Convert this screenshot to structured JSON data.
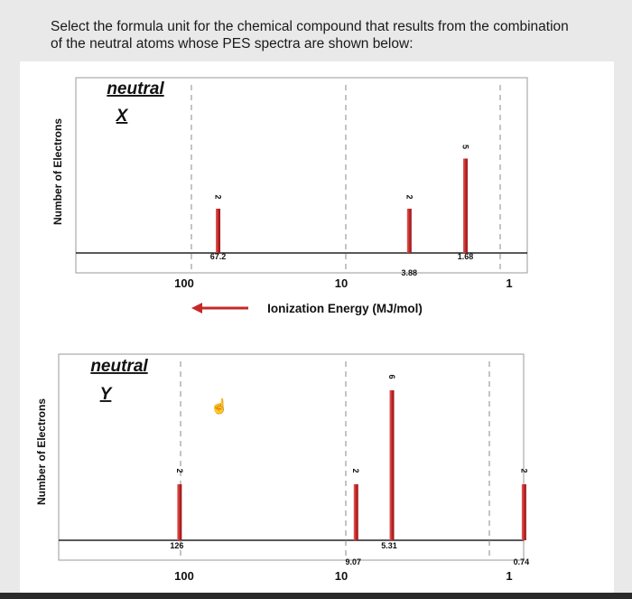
{
  "question": {
    "line1": "Select the formula unit for the chemical compound that results from the combination",
    "line2": "of the neutral atoms whose PES spectra are shown below:"
  },
  "chart_data": [
    {
      "type": "bar",
      "title": "neutral X",
      "title_word": "neutral",
      "title_symbol": "X",
      "ylabel": "Number of Electrons",
      "xlabel": "Ionization Energy (MJ/mol)",
      "x_scale": "log",
      "x_direction": "decreasing to the right",
      "x_ticks": [
        "100",
        "10",
        "1"
      ],
      "points": [
        {
          "x": 67.2,
          "x_label": "67.2",
          "y": 2,
          "y_label": "2"
        },
        {
          "x": 3.88,
          "x_label": "3.88",
          "y": 2,
          "y_label": "2"
        },
        {
          "x": 1.68,
          "x_label": "1.68",
          "y": 5,
          "y_label": "5"
        }
      ],
      "bar_color": "#c62828"
    },
    {
      "type": "bar",
      "title": "neutral Y",
      "title_word": "neutral",
      "title_symbol": "Y",
      "ylabel": "Number of Electrons",
      "x_scale": "log",
      "x_ticks": [
        "100",
        "10",
        "1"
      ],
      "points": [
        {
          "x": 126,
          "x_label": "126",
          "y": 2,
          "y_label": "2"
        },
        {
          "x": 9.07,
          "x_label": "9.07",
          "y": 2,
          "y_label": "2"
        },
        {
          "x": 5.31,
          "x_label": "5.31",
          "y": 6,
          "y_label": "6"
        },
        {
          "x": 0.74,
          "x_label": "0.74",
          "y": 2,
          "y_label": "2"
        }
      ],
      "bar_color": "#c62828"
    }
  ]
}
